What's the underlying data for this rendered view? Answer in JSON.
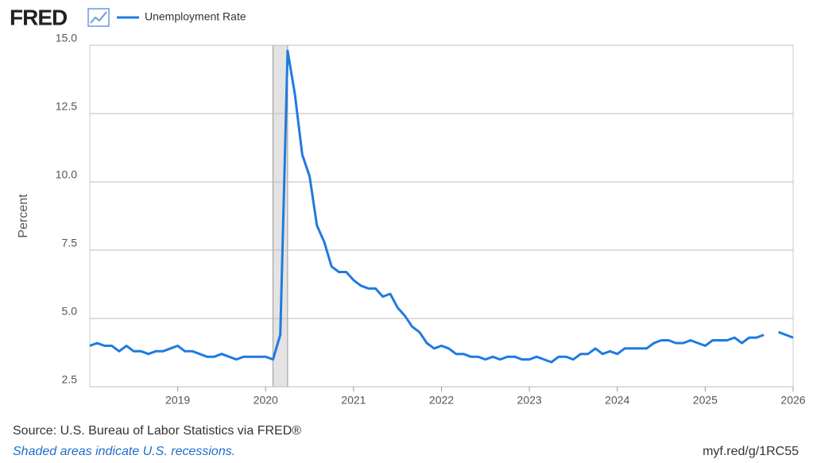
{
  "chart_data": {
    "type": "line",
    "logo": "FRED",
    "source": "Source: U.S. Bureau of Labor Statistics via FRED®",
    "note": "Shaded areas indicate U.S. recessions.",
    "link": "myf.red/g/1RC55",
    "y_label": "Percent",
    "x": [
      "2018-01",
      "2018-02",
      "2018-03",
      "2018-04",
      "2018-05",
      "2018-06",
      "2018-07",
      "2018-08",
      "2018-09",
      "2018-10",
      "2018-11",
      "2018-12",
      "2019-01",
      "2019-02",
      "2019-03",
      "2019-04",
      "2019-05",
      "2019-06",
      "2019-07",
      "2019-08",
      "2019-09",
      "2019-10",
      "2019-11",
      "2019-12",
      "2020-01",
      "2020-02",
      "2020-03",
      "2020-04",
      "2020-05",
      "2020-06",
      "2020-07",
      "2020-08",
      "2020-09",
      "2020-10",
      "2020-11",
      "2020-12",
      "2021-01",
      "2021-02",
      "2021-03",
      "2021-04",
      "2021-05",
      "2021-06",
      "2021-07",
      "2021-08",
      "2021-09",
      "2021-10",
      "2021-11",
      "2021-12",
      "2022-01",
      "2022-02",
      "2022-03",
      "2022-04",
      "2022-05",
      "2022-06",
      "2022-07",
      "2022-08",
      "2022-09",
      "2022-10",
      "2022-11",
      "2022-12",
      "2023-01",
      "2023-02",
      "2023-03",
      "2023-04",
      "2023-05",
      "2023-06",
      "2023-07",
      "2023-08",
      "2023-09",
      "2023-10",
      "2023-11",
      "2023-12",
      "2024-01",
      "2024-02",
      "2024-03",
      "2024-04",
      "2024-05",
      "2024-06",
      "2024-07",
      "2024-08",
      "2024-09",
      "2024-10",
      "2024-11",
      "2024-12",
      "2025-01",
      "2025-02",
      "2025-03",
      "2025-04",
      "2025-05",
      "2025-06",
      "2025-07",
      "2025-08",
      "2025-09",
      "2025-10",
      "2025-11",
      "2025-12",
      "2026-01"
    ],
    "series": [
      {
        "name": "Unemployment Rate",
        "color": "#1f7ae0",
        "values": [
          4.0,
          4.1,
          4.0,
          4.0,
          3.8,
          4.0,
          3.8,
          3.8,
          3.7,
          3.8,
          3.8,
          3.9,
          4.0,
          3.8,
          3.8,
          3.7,
          3.6,
          3.6,
          3.7,
          3.6,
          3.5,
          3.6,
          3.6,
          3.6,
          3.6,
          3.5,
          4.4,
          14.8,
          13.2,
          11.0,
          10.2,
          8.4,
          7.8,
          6.9,
          6.7,
          6.7,
          6.4,
          6.2,
          6.1,
          6.1,
          5.8,
          5.9,
          5.4,
          5.1,
          4.7,
          4.5,
          4.1,
          3.9,
          4.0,
          3.9,
          3.7,
          3.7,
          3.6,
          3.6,
          3.5,
          3.6,
          3.5,
          3.6,
          3.6,
          3.5,
          3.5,
          3.6,
          3.5,
          3.4,
          3.6,
          3.6,
          3.5,
          3.7,
          3.7,
          3.9,
          3.7,
          3.8,
          3.7,
          3.9,
          3.9,
          3.9,
          3.9,
          4.1,
          4.2,
          4.2,
          4.1,
          4.1,
          4.2,
          4.1,
          4.0,
          4.2,
          4.2,
          4.2,
          4.3,
          4.1,
          4.3,
          4.3,
          4.4,
          null,
          4.5,
          4.4,
          4.3
        ]
      }
    ],
    "recessions": [
      {
        "start": "2020-02",
        "end": "2020-04"
      }
    ],
    "xlim": [
      "2018-01",
      "2026-01"
    ],
    "xticks": [
      {
        "value": "2019-01",
        "label": "2019"
      },
      {
        "value": "2020-01",
        "label": "2020"
      },
      {
        "value": "2021-01",
        "label": "2021"
      },
      {
        "value": "2022-01",
        "label": "2022"
      },
      {
        "value": "2023-01",
        "label": "2023"
      },
      {
        "value": "2024-01",
        "label": "2024"
      },
      {
        "value": "2025-01",
        "label": "2025"
      },
      {
        "value": "2026-01",
        "label": "2026"
      }
    ],
    "ylim": [
      2.5,
      15
    ],
    "yticks": [
      {
        "value": 2.5,
        "label": "2.5"
      },
      {
        "value": 5,
        "label": "5.0"
      },
      {
        "value": 7.5,
        "label": "7.5"
      },
      {
        "value": 10,
        "label": "10.0"
      },
      {
        "value": 12.5,
        "label": "12.5"
      },
      {
        "value": 15,
        "label": "15.0"
      }
    ],
    "grid": true
  }
}
